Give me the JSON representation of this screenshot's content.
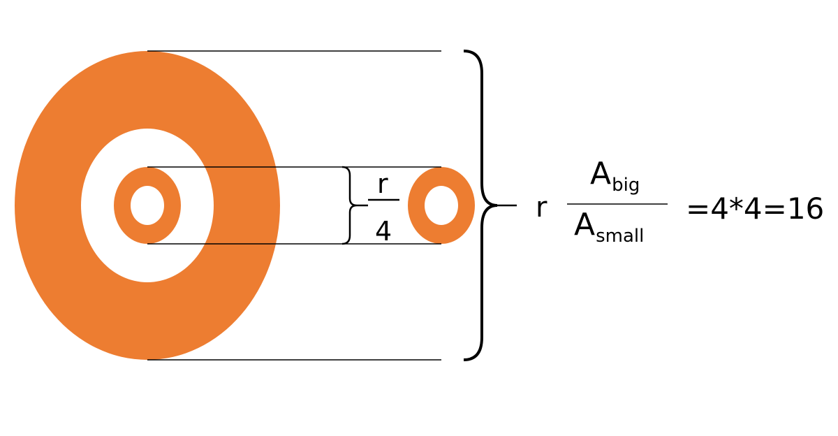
{
  "colors": {
    "ring": "#ED7D31",
    "line": "#000000",
    "background": "#FFFFFF"
  },
  "labels": {
    "small_fraction_numerator": "r",
    "small_fraction_denominator": "4",
    "ratio_prefix": "r",
    "ratio_numerator_letter": "A",
    "ratio_numerator_subscript": "big",
    "ratio_denominator_letter": "A",
    "ratio_denominator_subscript": "small",
    "result": "=4*4=16"
  }
}
